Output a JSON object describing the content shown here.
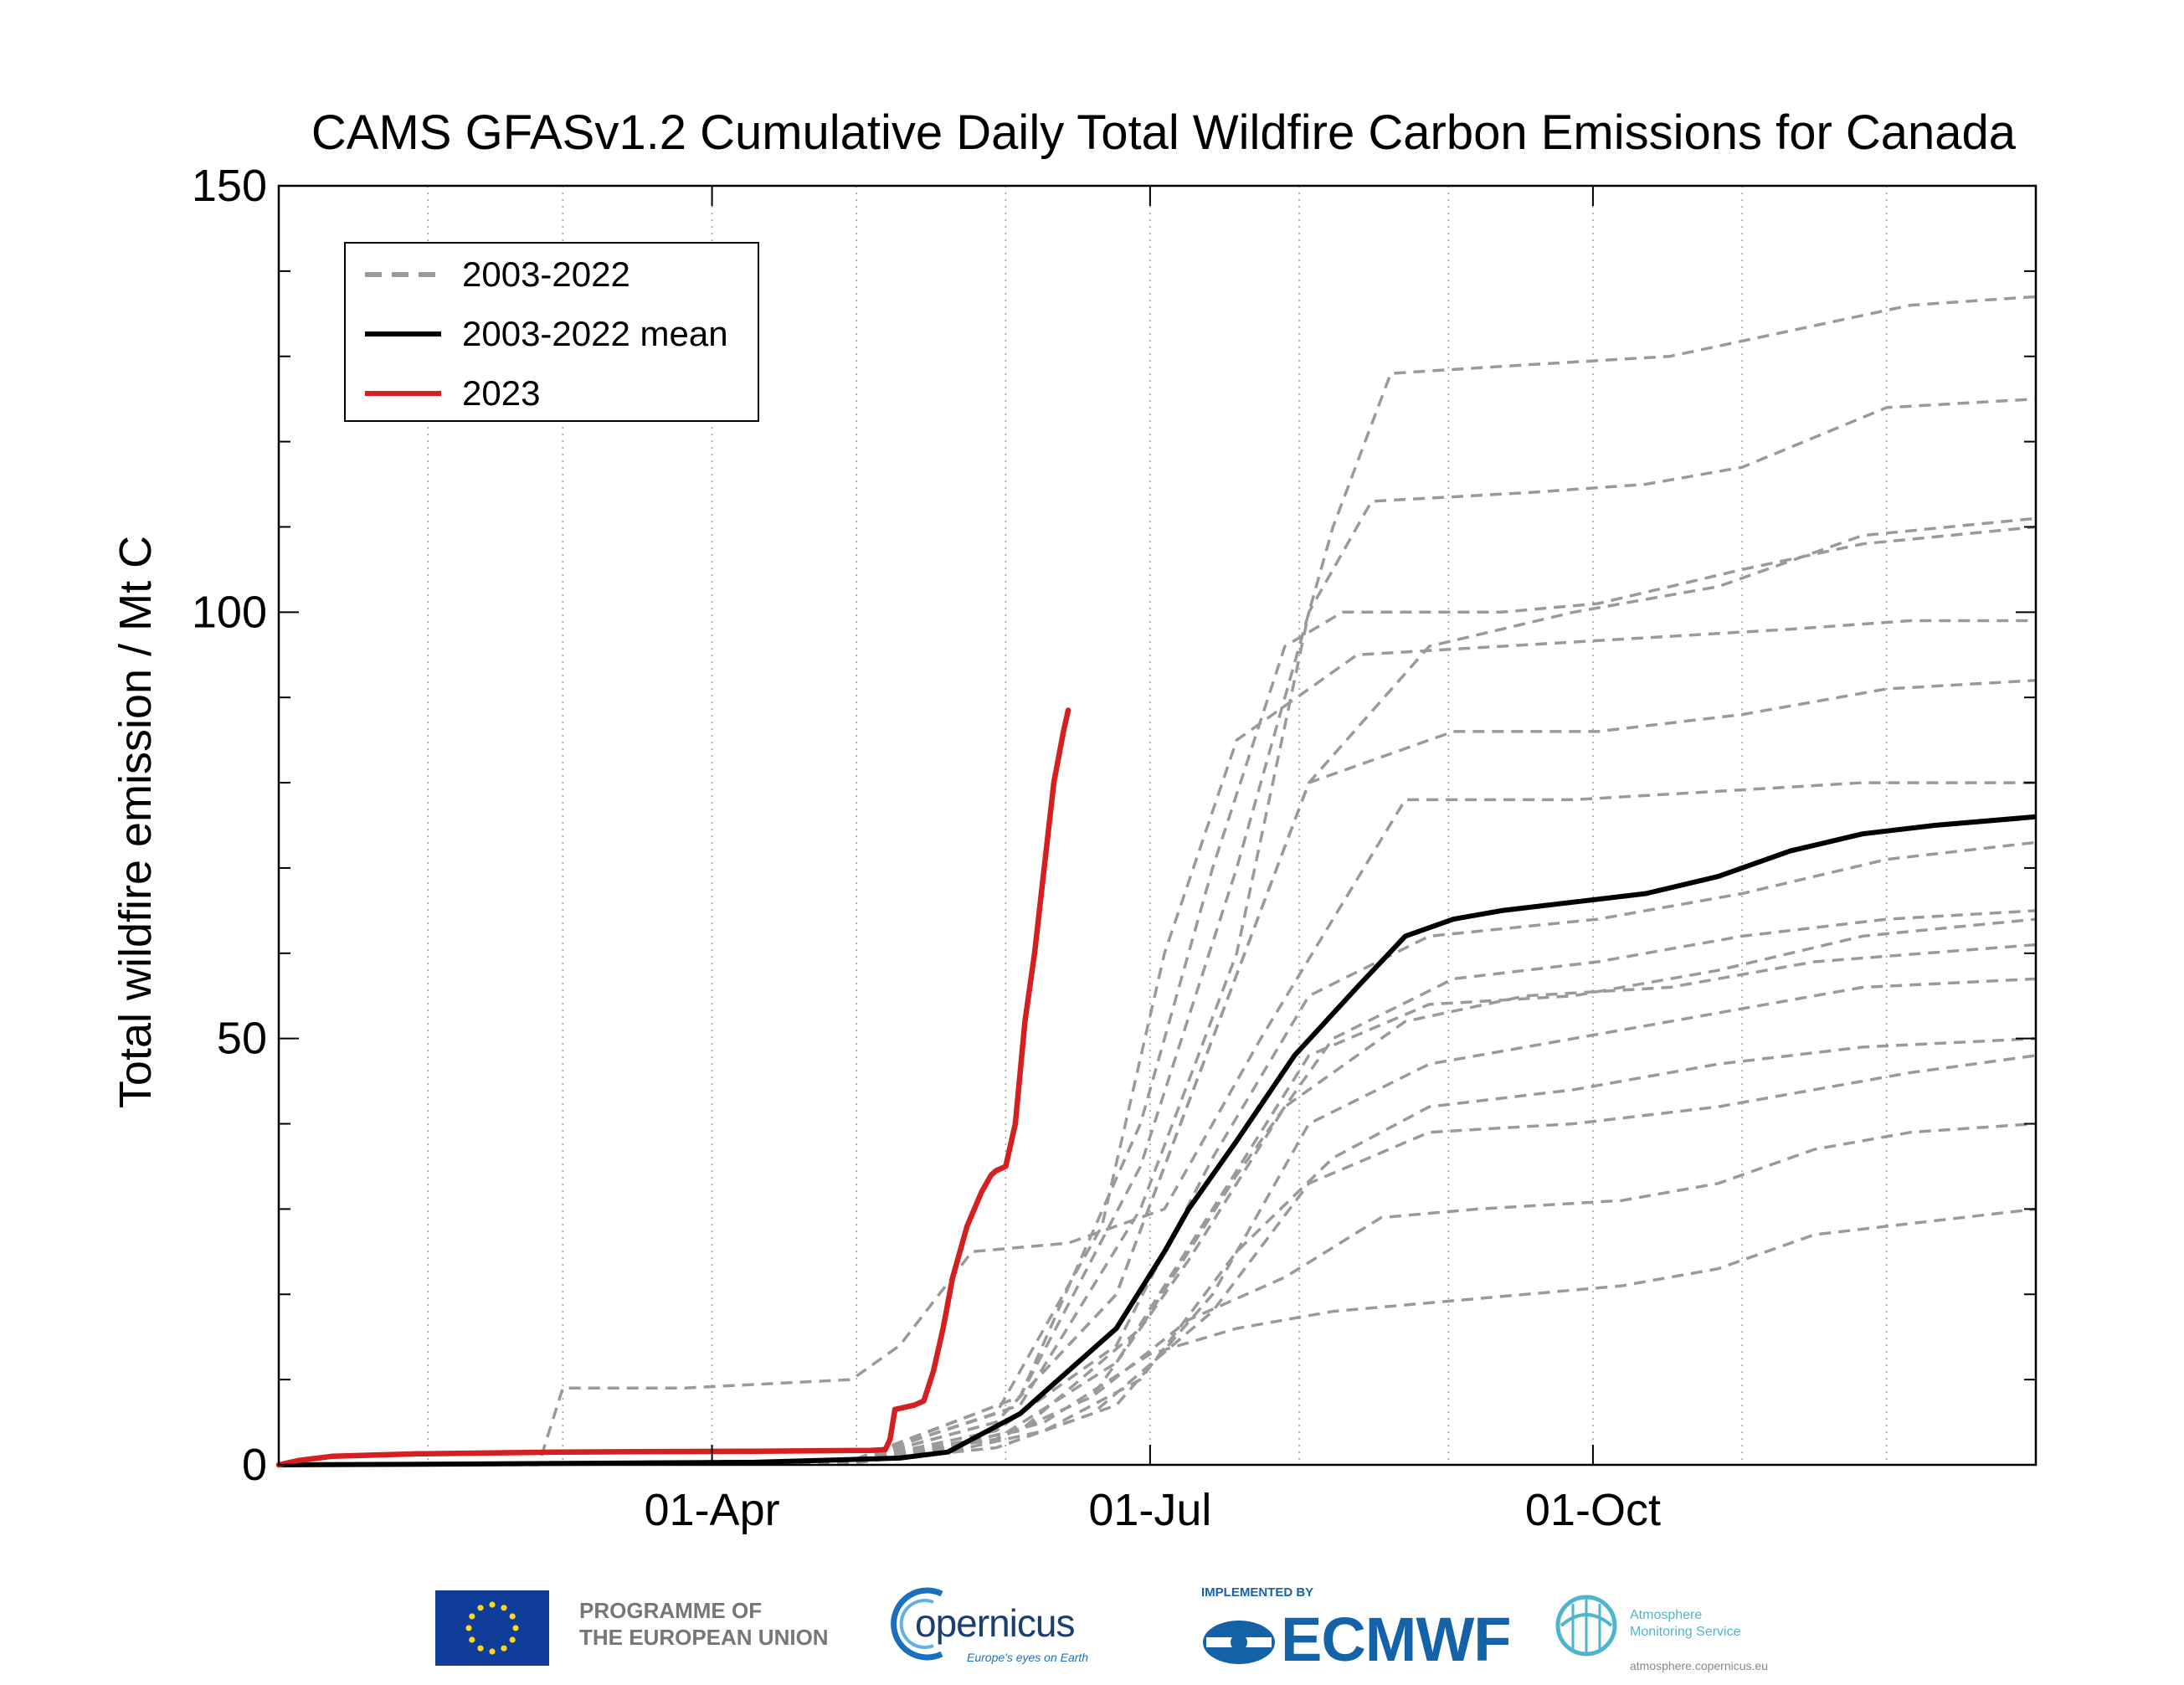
{
  "chart_data": {
    "type": "line",
    "title": "CAMS GFASv1.2 Cumulative Daily Total Wildfire Carbon Emissions for Canada",
    "xlabel": "",
    "ylabel": "Total wildfire emission / Mt C",
    "xlim": [
      1,
      366
    ],
    "ylim": [
      0,
      150
    ],
    "yticks": [
      0,
      50,
      100,
      150
    ],
    "xticks": [
      {
        "day": 91,
        "label": "01-Apr"
      },
      {
        "day": 182,
        "label": "01-Jul"
      },
      {
        "day": 274,
        "label": "01-Oct"
      }
    ],
    "grid": true,
    "legend_position": "top-left",
    "legend": [
      {
        "label": "2003-2022",
        "style": "dashed",
        "color": "#9a9a9a"
      },
      {
        "label": "2003-2022 mean",
        "style": "solid",
        "color": "#000000"
      },
      {
        "label": "2023",
        "style": "solid",
        "color": "#d42020"
      }
    ],
    "series": [
      {
        "name": "2003-2022",
        "kind": "individual",
        "points": [
          [
            1,
            0
          ],
          [
            120,
            0.3
          ],
          [
            140,
            2
          ],
          [
            160,
            5
          ],
          [
            182,
            13
          ],
          [
            200,
            16
          ],
          [
            220,
            18
          ],
          [
            240,
            19
          ],
          [
            260,
            20
          ],
          [
            280,
            21
          ],
          [
            300,
            23
          ],
          [
            320,
            27
          ],
          [
            366,
            30
          ]
        ]
      },
      {
        "name": "2003-2022",
        "kind": "individual",
        "points": [
          [
            1,
            0
          ],
          [
            120,
            0.4
          ],
          [
            150,
            3
          ],
          [
            170,
            8
          ],
          [
            190,
            17
          ],
          [
            210,
            22
          ],
          [
            230,
            29
          ],
          [
            250,
            30
          ],
          [
            280,
            31
          ],
          [
            300,
            33
          ],
          [
            320,
            37
          ],
          [
            340,
            39
          ],
          [
            366,
            40
          ]
        ]
      },
      {
        "name": "2003-2022",
        "kind": "individual",
        "points": [
          [
            1,
            0
          ],
          [
            120,
            0.3
          ],
          [
            150,
            2
          ],
          [
            170,
            6
          ],
          [
            195,
            18
          ],
          [
            215,
            33
          ],
          [
            240,
            39
          ],
          [
            270,
            40
          ],
          [
            300,
            42
          ],
          [
            320,
            44
          ],
          [
            340,
            46
          ],
          [
            366,
            48
          ]
        ]
      },
      {
        "name": "2003-2022",
        "kind": "individual",
        "points": [
          [
            1,
            0
          ],
          [
            120,
            0.2
          ],
          [
            140,
            1.5
          ],
          [
            160,
            4
          ],
          [
            180,
            10
          ],
          [
            200,
            25
          ],
          [
            220,
            36
          ],
          [
            240,
            42
          ],
          [
            270,
            44
          ],
          [
            300,
            47
          ],
          [
            330,
            49
          ],
          [
            366,
            50
          ]
        ]
      },
      {
        "name": "2003-2022",
        "kind": "individual",
        "points": [
          [
            1,
            0
          ],
          [
            120,
            0.3
          ],
          [
            150,
            2
          ],
          [
            175,
            7
          ],
          [
            195,
            20
          ],
          [
            215,
            40
          ],
          [
            240,
            47
          ],
          [
            270,
            50
          ],
          [
            300,
            53
          ],
          [
            330,
            56
          ],
          [
            366,
            57
          ]
        ]
      },
      {
        "name": "2003-2022",
        "kind": "individual",
        "points": [
          [
            1,
            0
          ],
          [
            120,
            0.4
          ],
          [
            150,
            3
          ],
          [
            170,
            8
          ],
          [
            190,
            24
          ],
          [
            210,
            42
          ],
          [
            235,
            52
          ],
          [
            260,
            55
          ],
          [
            290,
            56
          ],
          [
            320,
            59
          ],
          [
            366,
            61
          ]
        ]
      },
      {
        "name": "2003-2022",
        "kind": "individual",
        "points": [
          [
            1,
            0
          ],
          [
            120,
            0.3
          ],
          [
            150,
            3
          ],
          [
            175,
            12
          ],
          [
            195,
            30
          ],
          [
            215,
            48
          ],
          [
            240,
            54
          ],
          [
            270,
            55
          ],
          [
            300,
            58
          ],
          [
            330,
            62
          ],
          [
            366,
            64
          ]
        ]
      },
      {
        "name": "2003-2022",
        "kind": "individual",
        "points": [
          [
            1,
            0
          ],
          [
            120,
            0.3
          ],
          [
            155,
            4
          ],
          [
            180,
            16
          ],
          [
            200,
            34
          ],
          [
            220,
            50
          ],
          [
            245,
            57
          ],
          [
            275,
            59
          ],
          [
            305,
            62
          ],
          [
            335,
            64
          ],
          [
            366,
            65
          ]
        ]
      },
      {
        "name": "2003-2022",
        "kind": "individual",
        "points": [
          [
            1,
            0
          ],
          [
            120,
            0.4
          ],
          [
            150,
            4
          ],
          [
            175,
            14
          ],
          [
            195,
            36
          ],
          [
            215,
            55
          ],
          [
            240,
            62
          ],
          [
            275,
            64
          ],
          [
            305,
            67
          ],
          [
            335,
            71
          ],
          [
            366,
            73
          ]
        ]
      },
      {
        "name": "2003-2022",
        "kind": "individual",
        "points": [
          [
            1,
            0
          ],
          [
            55,
            0
          ],
          [
            60,
            9
          ],
          [
            85,
            9
          ],
          [
            120,
            10
          ],
          [
            130,
            14
          ],
          [
            145,
            25
          ],
          [
            165,
            26
          ],
          [
            185,
            30
          ],
          [
            205,
            50
          ],
          [
            235,
            78
          ],
          [
            270,
            78
          ],
          [
            300,
            79
          ],
          [
            330,
            80
          ],
          [
            366,
            80
          ]
        ]
      },
      {
        "name": "2003-2022",
        "kind": "individual",
        "points": [
          [
            1,
            0
          ],
          [
            120,
            0.5
          ],
          [
            150,
            5
          ],
          [
            175,
            20
          ],
          [
            195,
            50
          ],
          [
            215,
            80
          ],
          [
            245,
            86
          ],
          [
            275,
            86
          ],
          [
            305,
            88
          ],
          [
            335,
            91
          ],
          [
            366,
            92
          ]
        ]
      },
      {
        "name": "2003-2022",
        "kind": "individual",
        "points": [
          [
            1,
            0
          ],
          [
            120,
            0.5
          ],
          [
            150,
            6
          ],
          [
            172,
            28
          ],
          [
            185,
            60
          ],
          [
            200,
            85
          ],
          [
            225,
            95
          ],
          [
            255,
            96
          ],
          [
            285,
            97
          ],
          [
            315,
            98
          ],
          [
            340,
            99
          ],
          [
            366,
            99
          ]
        ]
      },
      {
        "name": "2003-2022",
        "kind": "individual",
        "points": [
          [
            1,
            0
          ],
          [
            120,
            0.4
          ],
          [
            155,
            8
          ],
          [
            180,
            40
          ],
          [
            195,
            70
          ],
          [
            210,
            96
          ],
          [
            222,
            100
          ],
          [
            255,
            100
          ],
          [
            275,
            101
          ],
          [
            305,
            105
          ],
          [
            330,
            108
          ],
          [
            366,
            110
          ]
        ]
      },
      {
        "name": "2003-2022",
        "kind": "individual",
        "points": [
          [
            1,
            0
          ],
          [
            120,
            0.4
          ],
          [
            150,
            5
          ],
          [
            175,
            20
          ],
          [
            195,
            50
          ],
          [
            215,
            80
          ],
          [
            240,
            96
          ],
          [
            270,
            100
          ],
          [
            300,
            103
          ],
          [
            330,
            109
          ],
          [
            366,
            111
          ]
        ]
      },
      {
        "name": "2003-2022",
        "kind": "individual",
        "points": [
          [
            1,
            0
          ],
          [
            120,
            0.5
          ],
          [
            155,
            7
          ],
          [
            180,
            30
          ],
          [
            200,
            60
          ],
          [
            215,
            100
          ],
          [
            228,
            113
          ],
          [
            260,
            114
          ],
          [
            285,
            115
          ],
          [
            305,
            117
          ],
          [
            335,
            124
          ],
          [
            366,
            125
          ]
        ]
      },
      {
        "name": "2003-2022",
        "kind": "individual",
        "points": [
          [
            1,
            0
          ],
          [
            120,
            0.5
          ],
          [
            155,
            8
          ],
          [
            180,
            35
          ],
          [
            200,
            70
          ],
          [
            220,
            110
          ],
          [
            232,
            128
          ],
          [
            260,
            129
          ],
          [
            290,
            130
          ],
          [
            315,
            133
          ],
          [
            340,
            136
          ],
          [
            366,
            137
          ]
        ]
      },
      {
        "name": "2003-2022 mean",
        "kind": "mean",
        "points": [
          [
            1,
            0
          ],
          [
            40,
            0.1
          ],
          [
            100,
            0.3
          ],
          [
            130,
            0.8
          ],
          [
            140,
            1.5
          ],
          [
            145,
            3
          ],
          [
            155,
            6
          ],
          [
            165,
            11
          ],
          [
            175,
            16
          ],
          [
            185,
            25
          ],
          [
            190,
            30
          ],
          [
            200,
            38
          ],
          [
            212,
            48
          ],
          [
            225,
            56
          ],
          [
            235,
            62
          ],
          [
            245,
            64
          ],
          [
            255,
            65
          ],
          [
            270,
            66
          ],
          [
            285,
            67
          ],
          [
            300,
            69
          ],
          [
            315,
            72
          ],
          [
            330,
            74
          ],
          [
            345,
            75
          ],
          [
            366,
            76
          ]
        ]
      },
      {
        "name": "2023",
        "kind": "current",
        "points": [
          [
            1,
            0
          ],
          [
            5,
            0.5
          ],
          [
            12,
            1
          ],
          [
            30,
            1.3
          ],
          [
            60,
            1.5
          ],
          [
            100,
            1.6
          ],
          [
            124,
            1.7
          ],
          [
            127,
            1.8
          ],
          [
            128,
            3
          ],
          [
            129,
            6.5
          ],
          [
            133,
            7
          ],
          [
            135,
            7.5
          ],
          [
            137,
            11
          ],
          [
            139,
            16
          ],
          [
            141,
            22
          ],
          [
            144,
            28
          ],
          [
            147,
            32
          ],
          [
            149,
            34
          ],
          [
            150,
            34.5
          ],
          [
            152,
            35
          ],
          [
            154,
            40
          ],
          [
            156,
            52
          ],
          [
            158,
            60
          ],
          [
            160,
            70
          ],
          [
            162,
            80
          ],
          [
            164,
            86
          ],
          [
            165,
            88.5
          ]
        ]
      }
    ]
  },
  "footer": {
    "eu_line1": "PROGRAMME OF",
    "eu_line2": "THE EUROPEAN UNION",
    "copernicus_name": "opernicus",
    "copernicus_tagline": "Europe's eyes on Earth",
    "ecmwf_small": "IMPLEMENTED BY",
    "ecmwf_name": "ECMWF",
    "ams_line1": "Atmosphere",
    "ams_line2": "Monitoring Service",
    "ams_url": "atmosphere.copernicus.eu"
  }
}
